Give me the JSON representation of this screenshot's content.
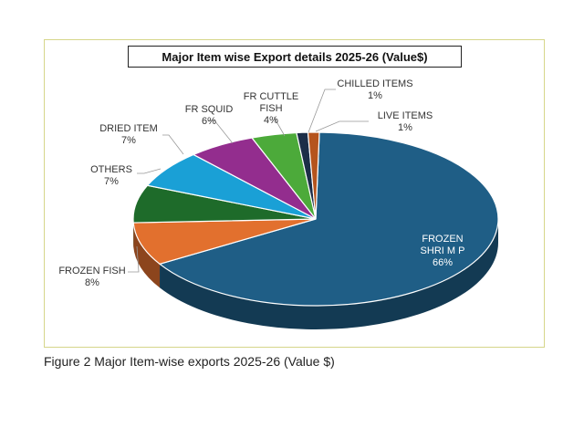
{
  "caption": "Figure 2 Major Item-wise exports 2025-26 (Value $)",
  "chart_data": {
    "type": "pie",
    "title": "Major Item wise Export details 2025-26 (Value$)",
    "slices": [
      {
        "name": "FROZEN SHRI M P",
        "value": 66,
        "label": "66%",
        "color": "#1f5e86"
      },
      {
        "name": "FROZEN FISH",
        "value": 8,
        "label": "8%",
        "color": "#e2702e"
      },
      {
        "name": "OTHERS",
        "value": 7,
        "label": "7%",
        "color": "#1e6b2a"
      },
      {
        "name": "DRIED ITEM",
        "value": 7,
        "label": "7%",
        "color": "#1aa0d6"
      },
      {
        "name": "FR SQUID",
        "value": 6,
        "label": "6%",
        "color": "#932d8e"
      },
      {
        "name": "FR CUTTLE FISH",
        "value": 4,
        "label": "4%",
        "color": "#4caa3a"
      },
      {
        "name": "CHILLED ITEMS",
        "value": 1,
        "label": "1%",
        "color": "#1c2e48"
      },
      {
        "name": "LIVE ITEMS",
        "value": 1,
        "label": "1%",
        "color": "#b5541d"
      }
    ]
  }
}
